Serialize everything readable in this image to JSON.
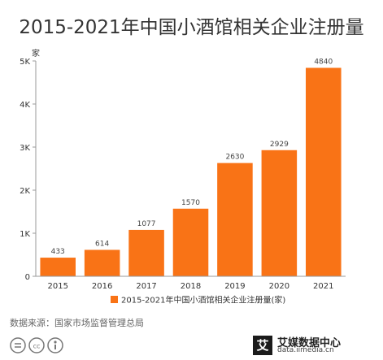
{
  "title": "2015-2021年中国小酒馆相关企业注册量",
  "source": "数据来源：国家市场监督管理总局",
  "brand": {
    "name": "艾媒数据中心",
    "url": "data.iimedia.cn",
    "logo_char": "艾"
  },
  "license_icons": [
    "equals-icon",
    "cc-icon",
    "attribution-icon"
  ],
  "chart_data": {
    "type": "bar",
    "title": "2015-2021年中国小酒馆相关企业注册量",
    "categories": [
      "2015",
      "2016",
      "2017",
      "2018",
      "2019",
      "2020",
      "2021"
    ],
    "series": [
      {
        "name": "2015-2021年中国小酒馆相关企业注册量(家)",
        "values": [
          433,
          614,
          1077,
          1570,
          2630,
          2929,
          4840
        ]
      }
    ],
    "ylabel": "家",
    "yticks": [
      "0",
      "1K",
      "2K",
      "3K",
      "4K",
      "5K"
    ],
    "ylim": [
      0,
      5000
    ],
    "color": "#f97316",
    "grid": false,
    "legend": "bottom-center"
  }
}
